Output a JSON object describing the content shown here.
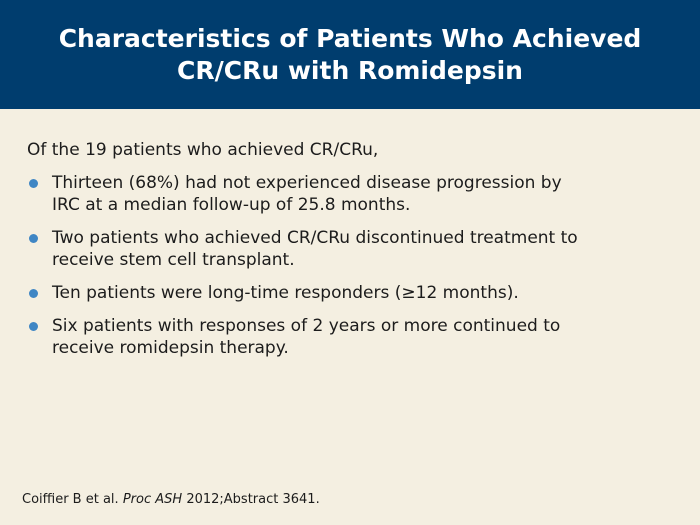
{
  "slide": {
    "title_line1": "Characteristics of Patients Who Achieved",
    "title_line2": "CR/CRu with Romidepsin",
    "intro": "Of the 19 patients who achieved CR/CRu,",
    "bullets": [
      {
        "line1": "Thirteen (68%) had not experienced disease progression by",
        "line2": "IRC at a median follow-up of 25.8 months."
      },
      {
        "line1": "Two patients who achieved CR/CRu discontinued treatment to",
        "line2": "receive stem cell transplant."
      },
      {
        "line1": "Ten patients were long-time responders (≥12 months).",
        "line2": ""
      },
      {
        "line1": "Six patients with responses of 2 years or more continued to",
        "line2": "receive romidepsin therapy."
      }
    ],
    "citation": {
      "authors": "Coiffier B et al.",
      "journal": "Proc ASH",
      "rest": "2012;Abstract 3641."
    },
    "colors": {
      "header_bg": "#003d6e",
      "slide_bg": "#f4efe1",
      "bullet_dot": "#3f86c4"
    }
  }
}
